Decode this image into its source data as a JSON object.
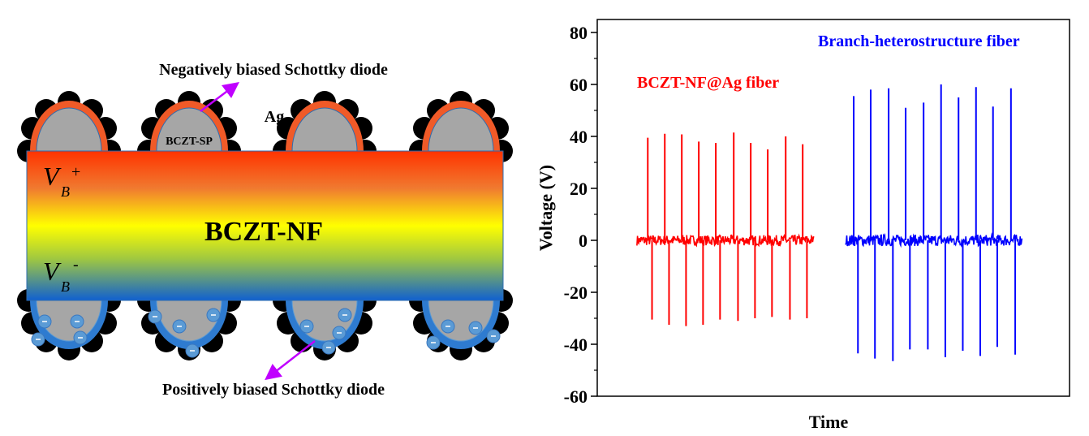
{
  "diagram": {
    "top_label": "Negatively biased Schottky diode",
    "bottom_label": "Positively biased Schottky diode",
    "ag_label": "Ag",
    "sp_label": "BCZT-SP",
    "nf_label": "BCZT-NF",
    "vb_symbol": "V",
    "vb_subscript": "B",
    "vb_plus": "+",
    "vb_minus": "-",
    "colors": {
      "arrow": "#c000ff",
      "top_rim": "#f05a28",
      "bottom_rim": "#2e7bd0",
      "particle": "#a6a6a6",
      "ag": "#000000",
      "electron": "#5b9bd5"
    }
  },
  "chart_data": {
    "type": "line",
    "title": "",
    "xlabel": "Time",
    "ylabel": "Voltage (V)",
    "ylim": [
      -60,
      85
    ],
    "xlim": [
      0,
      100
    ],
    "yticks": [
      -60,
      -40,
      -20,
      0,
      20,
      40,
      60,
      80
    ],
    "ytick_labels": [
      "-60",
      "-40",
      "-20",
      "0",
      "20",
      "40",
      "60",
      "80"
    ],
    "grid": false,
    "series": [
      {
        "name": "BCZT-NF@Ag fiber",
        "color": "#ff0000",
        "t_range": [
          8.4,
          45.9
        ],
        "baseline_noise": 2,
        "pulse_times": [
          10.7,
          14.3,
          17.9,
          21.5,
          25.1,
          28.9,
          32.5,
          36.1,
          39.9,
          43.5
        ],
        "positive_peaks": [
          39.5,
          41,
          40.8,
          38,
          37.5,
          41.5,
          37.5,
          35,
          40,
          37
        ],
        "negative_peaks": [
          -30.5,
          -32.5,
          -33,
          -32.5,
          -30.5,
          -31,
          -30,
          -29.5,
          -30.5,
          -30
        ]
      },
      {
        "name": "Branch-heterostructure fiber",
        "color": "#0000ff",
        "t_range": [
          52.6,
          90.0
        ],
        "baseline_noise": 2.2,
        "pulse_times": [
          54.3,
          57.9,
          61.7,
          65.3,
          69.1,
          72.8,
          76.5,
          80.2,
          83.8,
          87.6
        ],
        "positive_peaks": [
          55.5,
          58,
          58.5,
          51,
          53,
          60,
          55,
          59,
          51.5,
          58.5
        ],
        "negative_peaks": [
          -43.5,
          -45.5,
          -46.5,
          -42,
          -42,
          -45,
          -42.5,
          -44.5,
          -41,
          -44
        ]
      }
    ],
    "annotations": [
      "BCZT-NF@Ag fiber",
      "Branch-heterostructure fiber"
    ]
  }
}
